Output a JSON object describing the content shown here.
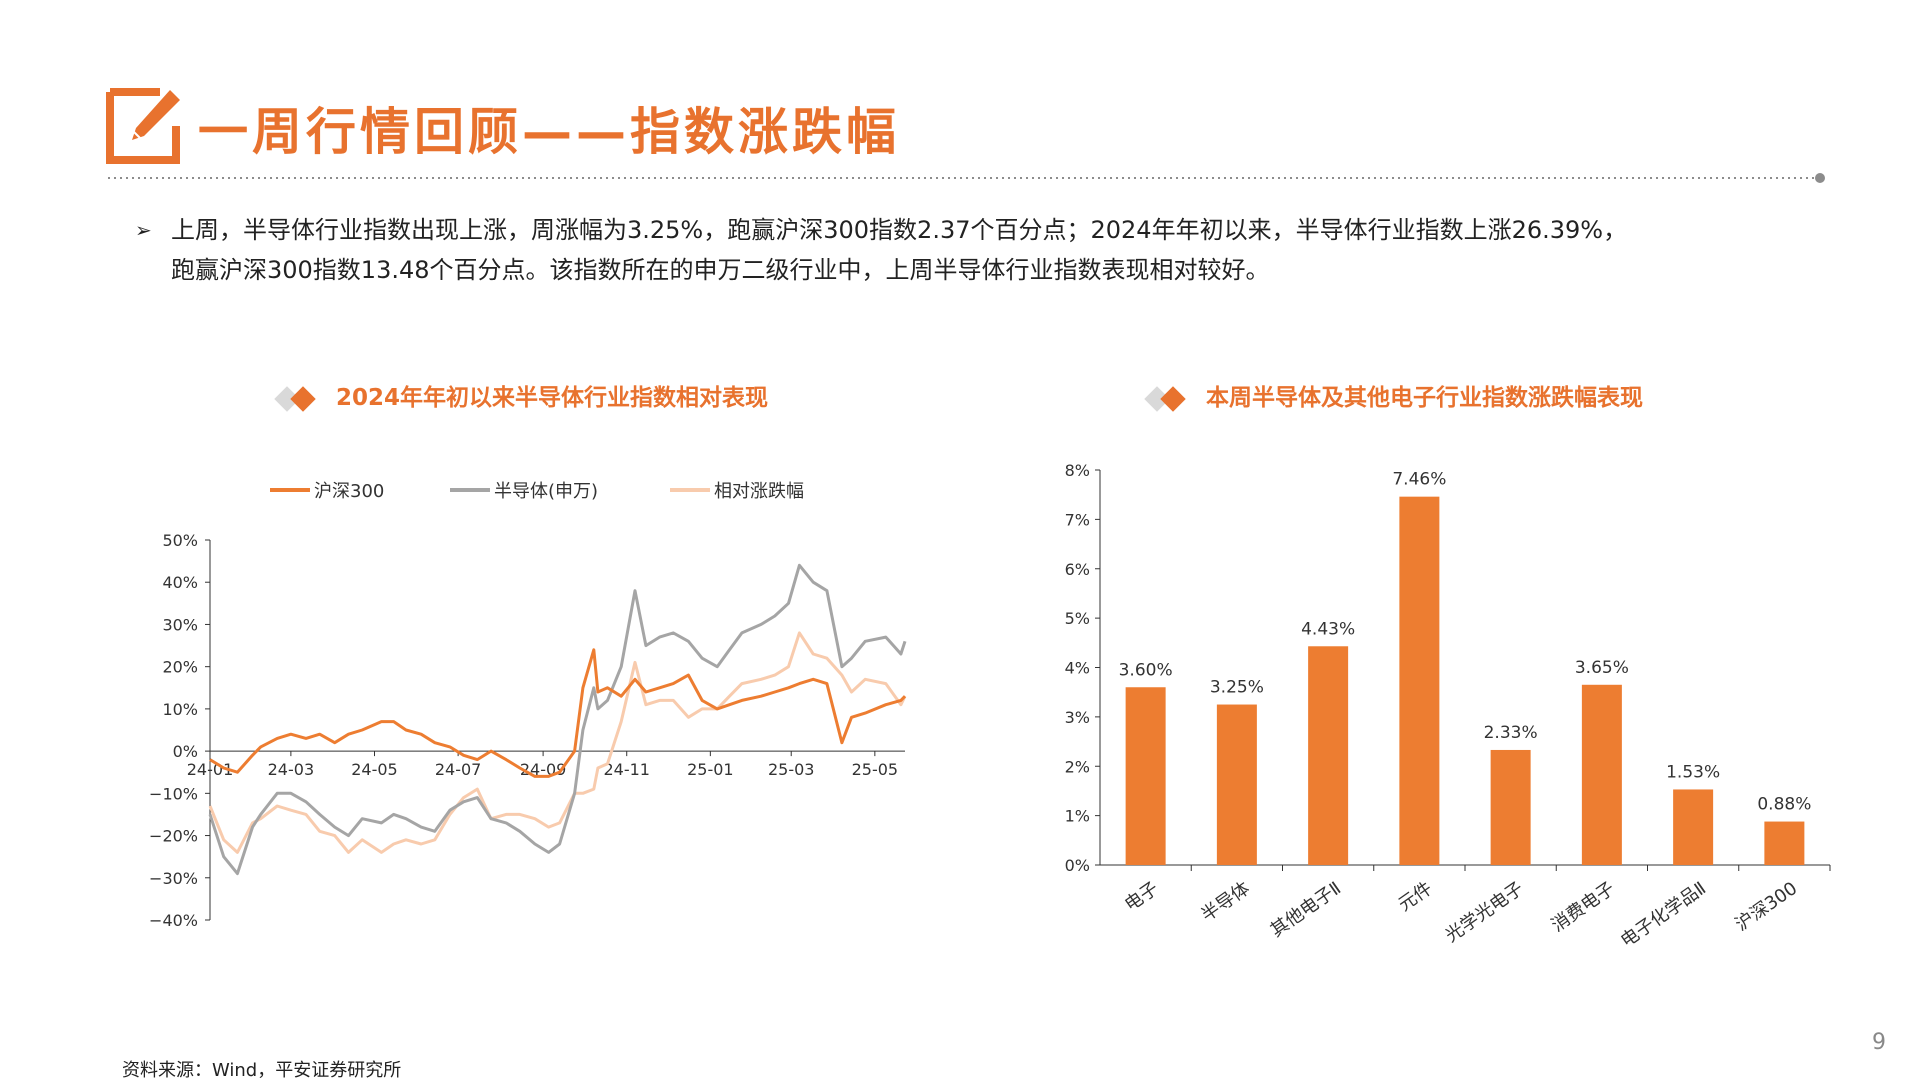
{
  "header": {
    "title": "一周行情回顾——指数涨跌幅",
    "icon": "edit-pencil-icon"
  },
  "summary": {
    "bullet": "➢",
    "line1": "上周，半导体行业指数出现上涨，周涨幅为3.25%，跑赢沪深300指数2.37个百分点；2024年年初以来，半导体行业指数上涨26.39%，",
    "line2": "跑赢沪深300指数13.48个百分点。该指数所在的申万二级行业中，上周半导体行业指数表现相对较好。"
  },
  "colors": {
    "accent": "#E8722E",
    "hs300": "#ED7D31",
    "semi": "#A5A5A5",
    "relative": "#F8CBAD",
    "bar": "#ED7D31",
    "diamond_gray": "#D9D9D9"
  },
  "chart_data": [
    {
      "type": "line",
      "title": "2024年年初以来半导体行业指数相对表现",
      "legend_position": "top",
      "x_ticks": [
        "24-01",
        "24-03",
        "24-05",
        "24-07",
        "24-09",
        "24-11",
        "25-01",
        "25-03",
        "25-05"
      ],
      "y_ticks": [
        "50%",
        "40%",
        "30%",
        "20%",
        "10%",
        "0%",
        "-10%",
        "-20%",
        "-30%",
        "-40%"
      ],
      "ylim": [
        -40,
        50
      ],
      "series": [
        {
          "name": "沪深300",
          "color": "#ED7D31",
          "x": [
            "2024-01-02",
            "2024-01-12",
            "2024-01-22",
            "2024-02-02",
            "2024-02-08",
            "2024-02-20",
            "2024-03-01",
            "2024-03-12",
            "2024-03-22",
            "2024-04-02",
            "2024-04-12",
            "2024-04-22",
            "2024-05-06",
            "2024-05-15",
            "2024-05-24",
            "2024-06-04",
            "2024-06-14",
            "2024-06-25",
            "2024-07-05",
            "2024-07-15",
            "2024-07-25",
            "2024-08-05",
            "2024-08-15",
            "2024-08-26",
            "2024-09-05",
            "2024-09-13",
            "2024-09-24",
            "2024-09-30",
            "2024-10-08",
            "2024-10-11",
            "2024-10-18",
            "2024-10-28",
            "2024-11-07",
            "2024-11-15",
            "2024-11-25",
            "2024-12-05",
            "2024-12-16",
            "2024-12-26",
            "2025-01-06",
            "2025-01-15",
            "2025-01-24",
            "2025-02-07",
            "2025-02-17",
            "2025-02-27",
            "2025-03-07",
            "2025-03-17",
            "2025-03-27",
            "2025-04-07",
            "2025-04-14",
            "2025-04-24",
            "2025-05-09",
            "2025-05-20",
            "2025-05-23"
          ],
          "values": [
            -2,
            -4,
            -5,
            -1,
            1,
            3,
            4,
            3,
            4,
            2,
            4,
            5,
            7,
            7,
            5,
            4,
            2,
            1,
            -1,
            -2,
            0,
            -2,
            -4,
            -6,
            -6,
            -5,
            0,
            15,
            24,
            14,
            15,
            13,
            17,
            14,
            15,
            16,
            18,
            12,
            10,
            11,
            12,
            13,
            14,
            15,
            16,
            17,
            16,
            2,
            8,
            9,
            11,
            12,
            13
          ]
        },
        {
          "name": "半导体(申万)",
          "color": "#A5A5A5",
          "x": [
            "2024-01-02",
            "2024-01-12",
            "2024-01-22",
            "2024-02-02",
            "2024-02-08",
            "2024-02-20",
            "2024-03-01",
            "2024-03-12",
            "2024-03-22",
            "2024-04-02",
            "2024-04-12",
            "2024-04-22",
            "2024-05-06",
            "2024-05-15",
            "2024-05-24",
            "2024-06-04",
            "2024-06-14",
            "2024-06-25",
            "2024-07-05",
            "2024-07-15",
            "2024-07-25",
            "2024-08-05",
            "2024-08-15",
            "2024-08-26",
            "2024-09-05",
            "2024-09-13",
            "2024-09-24",
            "2024-09-30",
            "2024-10-08",
            "2024-10-11",
            "2024-10-18",
            "2024-10-28",
            "2024-11-07",
            "2024-11-15",
            "2024-11-25",
            "2024-12-05",
            "2024-12-16",
            "2024-12-26",
            "2025-01-06",
            "2025-01-15",
            "2025-01-24",
            "2025-02-07",
            "2025-02-17",
            "2025-02-27",
            "2025-03-07",
            "2025-03-17",
            "2025-03-27",
            "2025-04-07",
            "2025-04-14",
            "2025-04-24",
            "2025-05-09",
            "2025-05-20",
            "2025-05-23"
          ],
          "values": [
            -15,
            -25,
            -29,
            -18,
            -15,
            -10,
            -10,
            -12,
            -15,
            -18,
            -20,
            -16,
            -17,
            -15,
            -16,
            -18,
            -19,
            -14,
            -12,
            -11,
            -16,
            -17,
            -19,
            -22,
            -24,
            -22,
            -10,
            5,
            15,
            10,
            12,
            20,
            38,
            25,
            27,
            28,
            26,
            22,
            20,
            24,
            28,
            30,
            32,
            35,
            44,
            40,
            38,
            20,
            22,
            26,
            27,
            23,
            26
          ]
        },
        {
          "name": "相对涨跌幅",
          "color": "#F8CBAD",
          "x": [
            "2024-01-02",
            "2024-01-12",
            "2024-01-22",
            "2024-02-02",
            "2024-02-08",
            "2024-02-20",
            "2024-03-01",
            "2024-03-12",
            "2024-03-22",
            "2024-04-02",
            "2024-04-12",
            "2024-04-22",
            "2024-05-06",
            "2024-05-15",
            "2024-05-24",
            "2024-06-04",
            "2024-06-14",
            "2024-06-25",
            "2024-07-05",
            "2024-07-15",
            "2024-07-25",
            "2024-08-05",
            "2024-08-15",
            "2024-08-26",
            "2024-09-05",
            "2024-09-13",
            "2024-09-24",
            "2024-09-30",
            "2024-10-08",
            "2024-10-11",
            "2024-10-18",
            "2024-10-28",
            "2024-11-07",
            "2024-11-15",
            "2024-11-25",
            "2024-12-05",
            "2024-12-16",
            "2024-12-26",
            "2025-01-06",
            "2025-01-15",
            "2025-01-24",
            "2025-02-07",
            "2025-02-17",
            "2025-02-27",
            "2025-03-07",
            "2025-03-17",
            "2025-03-27",
            "2025-04-07",
            "2025-04-14",
            "2025-04-24",
            "2025-05-09",
            "2025-05-20",
            "2025-05-23"
          ],
          "values": [
            -13,
            -21,
            -24,
            -17,
            -16,
            -13,
            -14,
            -15,
            -19,
            -20,
            -24,
            -21,
            -24,
            -22,
            -21,
            -22,
            -21,
            -15,
            -11,
            -9,
            -16,
            -15,
            -15,
            -16,
            -18,
            -17,
            -10,
            -10,
            -9,
            -4,
            -3,
            7,
            21,
            11,
            12,
            12,
            8,
            10,
            10,
            13,
            16,
            17,
            18,
            20,
            28,
            23,
            22,
            18,
            14,
            17,
            16,
            11,
            13
          ]
        }
      ]
    },
    {
      "type": "bar",
      "title": "本周半导体及其他电子行业指数涨跌幅表现",
      "categories": [
        "电子",
        "半导体",
        "其他电子Ⅱ",
        "元件",
        "光学光电子",
        "消费电子",
        "电子化学品Ⅱ",
        "沪深300"
      ],
      "values": [
        3.6,
        3.25,
        4.43,
        7.46,
        2.33,
        3.65,
        1.53,
        0.88
      ],
      "value_labels": [
        "3.60%",
        "3.25%",
        "4.43%",
        "7.46%",
        "2.33%",
        "3.65%",
        "1.53%",
        "0.88%"
      ],
      "y_ticks": [
        "8%",
        "7%",
        "6%",
        "5%",
        "4%",
        "3%",
        "2%",
        "1%",
        "0%"
      ],
      "ylim": [
        0,
        8
      ]
    }
  ],
  "footer": {
    "source": "资料来源：Wind，平安证券研究所",
    "page_number": "9"
  }
}
